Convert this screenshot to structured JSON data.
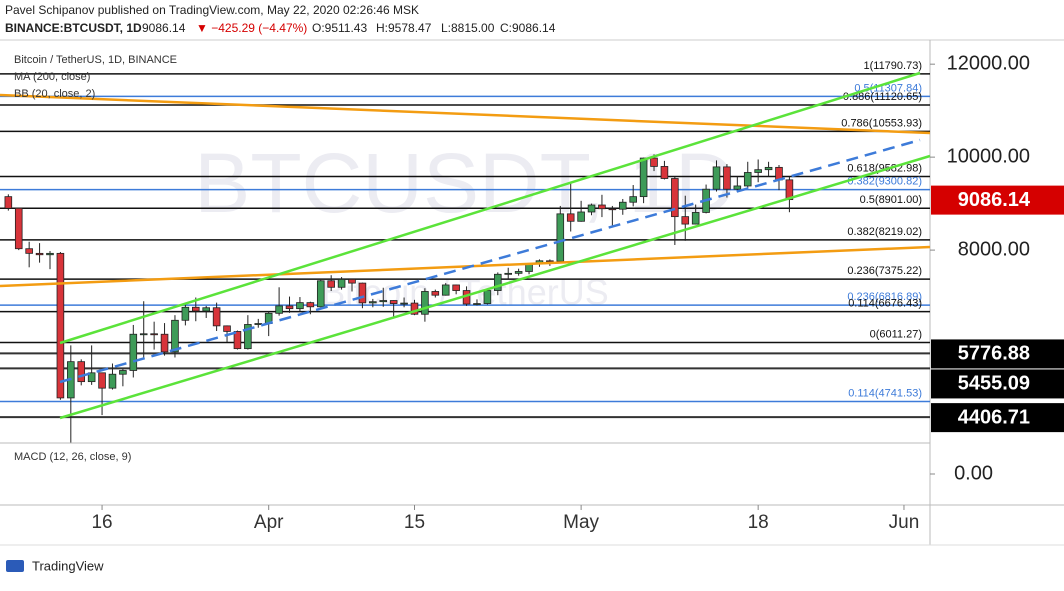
{
  "header": {
    "publisher": "Pavel Schipanov published on TradingView.com, May 22, 2020 02:26:46 MSK",
    "symbol": "BINANCE:BTCUSDT, 1D",
    "last": "9086.14",
    "change": "−425.29 (−4.47%)",
    "open": "O:9511.43",
    "high": "H:9578.47",
    "low": "L:8815.00",
    "close": "C:9086.14"
  },
  "footer": "TradingView",
  "chart_data": {
    "type": "candlestick",
    "title": "Bitcoin / TetherUS, 1D, BINANCE",
    "watermark": "BTCUSDT, 1D",
    "watermark_sub": "Bitcoin / TetherUS",
    "indicators": [
      "MA (200, close)",
      "BB (20, close, 2)"
    ],
    "up_color": "#3e9b58",
    "down_color": "#d8343a",
    "ylim": [
      3850,
      12520
    ],
    "yticks": [
      {
        "value": 12000,
        "label": "12000.00"
      },
      {
        "value": 10000,
        "label": "10000.00"
      },
      {
        "value": 8000,
        "label": "8000.00"
      }
    ],
    "xlim": [
      -0.8,
      88.5
    ],
    "xticks": [
      {
        "value": 9,
        "label": "16"
      },
      {
        "value": 25,
        "label": "Apr"
      },
      {
        "value": 39,
        "label": "15"
      },
      {
        "value": 55,
        "label": "May"
      },
      {
        "value": 72,
        "label": "18"
      },
      {
        "value": 86,
        "label": "Jun"
      }
    ],
    "candles": [
      [
        9150,
        9200,
        8850,
        8900
      ],
      [
        8900,
        8900,
        8000,
        8030
      ],
      [
        8030,
        8180,
        7630,
        7930
      ],
      [
        7930,
        8150,
        7730,
        7900
      ],
      [
        7900,
        7980,
        7590,
        7930
      ],
      [
        7930,
        7960,
        4780,
        4820
      ],
      [
        4820,
        5950,
        3860,
        5600
      ],
      [
        5600,
        5650,
        5090,
        5170
      ],
      [
        5170,
        5950,
        5100,
        5360
      ],
      [
        5360,
        5360,
        4450,
        5030
      ],
      [
        5030,
        5560,
        5000,
        5330
      ],
      [
        5330,
        5440,
        5070,
        5410
      ],
      [
        5410,
        6390,
        5260,
        6190
      ],
      [
        6190,
        6900,
        5670,
        6200
      ],
      [
        6200,
        6460,
        5860,
        6190
      ],
      [
        6190,
        6430,
        5730,
        5810
      ],
      [
        5810,
        6600,
        5690,
        6490
      ],
      [
        6490,
        6840,
        6380,
        6770
      ],
      [
        6770,
        6980,
        6470,
        6690
      ],
      [
        6690,
        6800,
        6540,
        6760
      ],
      [
        6760,
        6870,
        6260,
        6370
      ],
      [
        6370,
        6380,
        6020,
        6250
      ],
      [
        6250,
        6270,
        5860,
        5880
      ],
      [
        5880,
        6600,
        5860,
        6400
      ],
      [
        6400,
        6520,
        6330,
        6420
      ],
      [
        6420,
        6680,
        6150,
        6640
      ],
      [
        6640,
        7200,
        6590,
        6800
      ],
      [
        6800,
        7000,
        6650,
        6740
      ],
      [
        6740,
        6990,
        6680,
        6870
      ],
      [
        6870,
        6890,
        6620,
        6780
      ],
      [
        6780,
        7360,
        6770,
        7340
      ],
      [
        7340,
        7460,
        7120,
        7200
      ],
      [
        7200,
        7420,
        7150,
        7370
      ],
      [
        7370,
        7380,
        7110,
        7290
      ],
      [
        7290,
        7300,
        6750,
        6865
      ],
      [
        6865,
        6950,
        6770,
        6890
      ],
      [
        6890,
        7190,
        6780,
        6915
      ],
      [
        6915,
        6920,
        6550,
        6850
      ],
      [
        6850,
        6980,
        6770,
        6860
      ],
      [
        6860,
        6930,
        6600,
        6620
      ],
      [
        6620,
        7180,
        6460,
        7110
      ],
      [
        7110,
        7150,
        6980,
        7030
      ],
      [
        7030,
        7290,
        7020,
        7250
      ],
      [
        7250,
        7260,
        7050,
        7130
      ],
      [
        7130,
        7220,
        6800,
        6840
      ],
      [
        6840,
        6940,
        6810,
        6850
      ],
      [
        6850,
        7150,
        6830,
        7130
      ],
      [
        7130,
        7520,
        7030,
        7480
      ],
      [
        7480,
        7620,
        7390,
        7500
      ],
      [
        7500,
        7600,
        7450,
        7540
      ],
      [
        7540,
        7720,
        7480,
        7700
      ],
      [
        7700,
        7800,
        7640,
        7770
      ],
      [
        7770,
        7800,
        7660,
        7760
      ],
      [
        7760,
        8950,
        7740,
        8780
      ],
      [
        8780,
        9460,
        8400,
        8620
      ],
      [
        8620,
        9060,
        8610,
        8820
      ],
      [
        8820,
        9000,
        8750,
        8970
      ],
      [
        8970,
        9190,
        8710,
        8890
      ],
      [
        8890,
        8950,
        8530,
        8880
      ],
      [
        8880,
        9100,
        8760,
        9030
      ],
      [
        9030,
        9400,
        8940,
        9150
      ],
      [
        9150,
        9990,
        9010,
        9980
      ],
      [
        9980,
        10060,
        9700,
        9800
      ],
      [
        9800,
        9920,
        9520,
        9540
      ],
      [
        9540,
        9580,
        8110,
        8720
      ],
      [
        8720,
        9170,
        8200,
        8560
      ],
      [
        8560,
        8980,
        8550,
        8810
      ],
      [
        8810,
        9410,
        8790,
        9310
      ],
      [
        9310,
        9930,
        9260,
        9790
      ],
      [
        9790,
        9850,
        9130,
        9310
      ],
      [
        9310,
        9580,
        9250,
        9380
      ],
      [
        9380,
        9900,
        9330,
        9670
      ],
      [
        9670,
        9950,
        9460,
        9730
      ],
      [
        9730,
        9900,
        9590,
        9780
      ],
      [
        9780,
        9830,
        9290,
        9510
      ],
      [
        9511.43,
        9578.47,
        8815,
        9086.14
      ]
    ],
    "fib_levels": [
      {
        "value": 11790.73,
        "label": "1(11790.73)",
        "color": "#111111"
      },
      {
        "value": 11307.84,
        "label": "0.5(11307.84)",
        "color": "#3d7bd9"
      },
      {
        "value": 11120.65,
        "label": "0.886(11120.65)",
        "color": "#111111"
      },
      {
        "value": 10553.93,
        "label": "0.786(10553.93)",
        "color": "#111111"
      },
      {
        "value": 9582.98,
        "label": "0.618(9582.98)",
        "color": "#111111"
      },
      {
        "value": 9300.82,
        "label": "0.382(9300.82)",
        "color": "#3d7bd9"
      },
      {
        "value": 8901.0,
        "label": "0.5(8901.00)",
        "color": "#111111"
      },
      {
        "value": 8219.02,
        "label": "0.382(8219.02)",
        "color": "#111111"
      },
      {
        "value": 7375.22,
        "label": "0.236(7375.22)",
        "color": "#111111"
      },
      {
        "value": 6816.89,
        "label": "0.236(6816.89)",
        "color": "#3d7bd9"
      },
      {
        "value": 6676.43,
        "label": "0.114(6676.43)",
        "color": "#111111"
      },
      {
        "value": 6011.27,
        "label": "0(6011.27)",
        "color": "#111111"
      },
      {
        "value": 4741.53,
        "label": "0.114(4741.53)",
        "color": "#3d7bd9"
      }
    ],
    "price_marks": [
      {
        "value": 9086.14,
        "color": "#d50000"
      },
      {
        "value": 5776.88,
        "color": "#000000"
      },
      {
        "value": 5455.09,
        "color": "#000000"
      },
      {
        "value": 4406.71,
        "color": "#000000"
      }
    ],
    "macd": {
      "label": "MACD (12, 26, close, 9)",
      "ylim": [
        -450,
        450
      ],
      "yticks": [
        {
          "value": 0,
          "label": "0.00"
        }
      ]
    }
  }
}
